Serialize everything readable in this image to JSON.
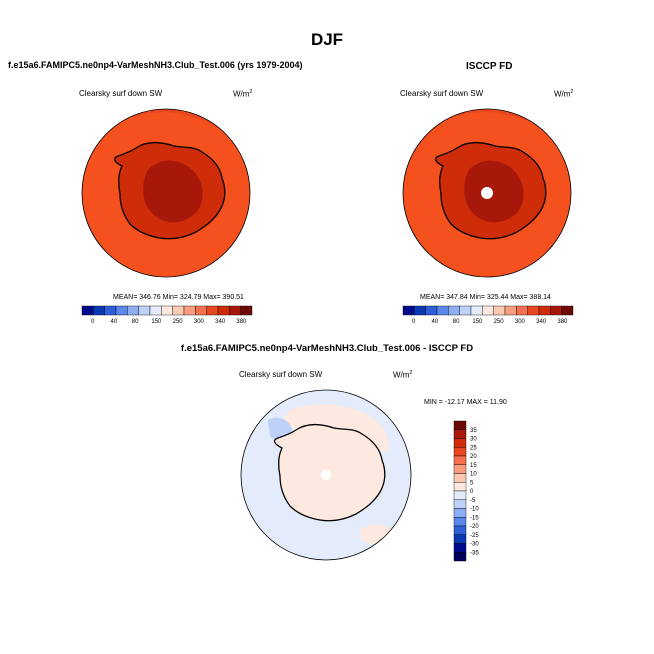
{
  "title": "DJF",
  "left_panel": {
    "header": "f.e15a6.FAMIPC5.ne0np4-VarMeshNH3.Club_Test.006 (yrs 1979-2004)",
    "variable": "Clearsky surf down SW",
    "units_base": "W/m",
    "units_exp": "2",
    "stats": "MEAN= 346.76  Min= 324.79  Max= 390.51"
  },
  "right_panel": {
    "header": "ISCCP FD",
    "variable": "Clearsky surf down SW",
    "units_base": "W/m",
    "units_exp": "2",
    "stats": "MEAN= 347.84  Min= 325.44  Max= 388.14"
  },
  "diff_panel": {
    "header": "f.e15a6.FAMIPC5.ne0np4-VarMeshNH3.Club_Test.006 - ISCCP FD",
    "variable": "Clearsky surf down SW",
    "units_base": "W/m",
    "units_exp": "2",
    "stats": "MIN = -12.17  MAX =  11.90"
  },
  "colorbar_top": {
    "ticks": [
      "0",
      "40",
      "80",
      "150",
      "250",
      "300",
      "340",
      "380"
    ],
    "colors": [
      "#000a8a",
      "#0a37b4",
      "#2c5fd8",
      "#5a88ec",
      "#8eaef4",
      "#bed1f8",
      "#e4ecfc",
      "#fde9df",
      "#fbc9b1",
      "#f89e7f",
      "#f4704e",
      "#e8471f",
      "#cf2c0a",
      "#a8180a",
      "#6e0a05"
    ]
  },
  "colorbar_diff": {
    "ticks": [
      "35",
      "30",
      "25",
      "20",
      "15",
      "10",
      "5",
      "0",
      "-5",
      "-10",
      "-15",
      "-20",
      "-25",
      "-30",
      "-35"
    ],
    "colors": [
      "#6e0a05",
      "#a8180a",
      "#cf2c0a",
      "#e8471f",
      "#f4704e",
      "#f89e7f",
      "#fbc9b1",
      "#fde9df",
      "#e4ecfc",
      "#bed1f8",
      "#8eaef4",
      "#5a88ec",
      "#2c5fd8",
      "#0a37b4",
      "#000a8a",
      "#00005a"
    ]
  }
}
